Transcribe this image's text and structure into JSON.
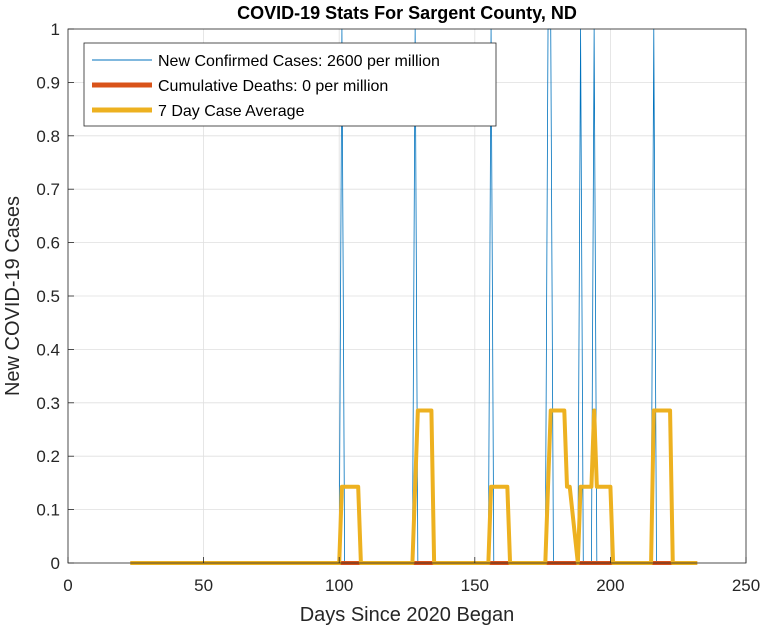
{
  "chart_data": {
    "type": "line",
    "title": "COVID-19 Stats For Sargent County, ND",
    "xlabel": "Days Since 2020 Began",
    "ylabel": "New COVID-19 Cases",
    "xlim": [
      0,
      250
    ],
    "ylim": [
      0,
      1
    ],
    "xticks": [
      0,
      50,
      100,
      150,
      200,
      250
    ],
    "yticks": [
      0,
      0.1,
      0.2,
      0.3,
      0.4,
      0.5,
      0.6,
      0.7,
      0.8,
      0.9,
      1
    ],
    "ytick_labels": [
      "0",
      "0.1",
      "0.2",
      "0.3",
      "0.4",
      "0.5",
      "0.6",
      "0.7",
      "0.8",
      "0.9",
      "1"
    ],
    "grid": true,
    "legend_position": "top-left",
    "series": [
      {
        "name": "New Confirmed Cases: 2600 per million",
        "color": "#0072BD",
        "width": 0.8,
        "x": [
          23,
          100,
          101,
          102,
          127,
          128,
          129,
          155,
          156,
          157,
          176,
          177,
          178,
          179,
          188,
          189,
          190,
          193,
          194,
          195,
          215,
          216,
          217,
          232
        ],
        "y": [
          0,
          0,
          1,
          0,
          0,
          1,
          0,
          0,
          1,
          0,
          0,
          1,
          1,
          0,
          0,
          1,
          0,
          0,
          1,
          0,
          0,
          1,
          0,
          0
        ]
      },
      {
        "name": "Cumulative Deaths: 0 per million",
        "color": "#D95319",
        "width": 4,
        "x": [
          23,
          232
        ],
        "y": [
          0,
          0
        ]
      },
      {
        "name": "7 Day Case Average",
        "color": "#EDB120",
        "width": 4,
        "x": [
          23,
          100,
          101,
          107,
          108,
          127,
          128,
          129,
          134,
          135,
          155,
          156,
          162,
          163,
          176,
          177,
          178,
          179,
          183,
          184,
          185,
          188,
          189,
          193,
          194,
          195,
          199,
          200,
          201,
          215,
          216,
          222,
          223,
          232
        ],
        "y": [
          0,
          0,
          0.1429,
          0.1429,
          0,
          0,
          0.1429,
          0.2857,
          0.2857,
          0,
          0,
          0.1429,
          0.1429,
          0,
          0,
          0.1429,
          0.2857,
          0.2857,
          0.2857,
          0.1429,
          0.1429,
          0,
          0.1429,
          0.1429,
          0.2857,
          0.1429,
          0.1429,
          0.1429,
          0,
          0,
          0.2857,
          0.2857,
          0,
          0
        ]
      }
    ]
  }
}
